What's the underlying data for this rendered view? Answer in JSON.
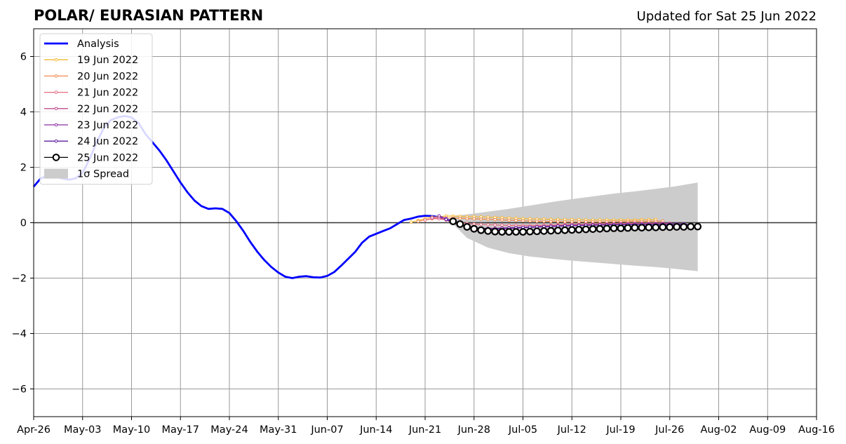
{
  "chart_data": {
    "type": "line",
    "title": "POLAR/ EURASIAN  PATTERN",
    "subtitle": "Updated for Sat 25 Jun 2022",
    "xlabel": "",
    "ylabel": "",
    "xlim": [
      "2022-04-26",
      "2022-08-16"
    ],
    "ylim": [
      -7,
      7
    ],
    "x_ticks": [
      "Apr-26",
      "May-03",
      "May-10",
      "May-17",
      "May-24",
      "May-31",
      "Jun-07",
      "Jun-14",
      "Jun-21",
      "Jun-28",
      "Jul-05",
      "Jul-12",
      "Jul-19",
      "Jul-26",
      "Aug-02",
      "Aug-09",
      "Aug-16"
    ],
    "y_ticks": [
      -6,
      -4,
      -2,
      0,
      2,
      4,
      6
    ],
    "y_tick_labels": [
      "−6",
      "−4",
      "−2",
      "0",
      "2",
      "4",
      "6"
    ],
    "grid": true,
    "legend_position": "upper-left",
    "analysis": {
      "name": "Analysis",
      "color": "#0000ff",
      "x": [
        "2022-04-26",
        "2022-04-27",
        "2022-04-28",
        "2022-04-29",
        "2022-04-30",
        "2022-05-01",
        "2022-05-02",
        "2022-05-03",
        "2022-05-04",
        "2022-05-05",
        "2022-05-06",
        "2022-05-07",
        "2022-05-08",
        "2022-05-09",
        "2022-05-10",
        "2022-05-11",
        "2022-05-12",
        "2022-05-13",
        "2022-05-14",
        "2022-05-15",
        "2022-05-16",
        "2022-05-17",
        "2022-05-18",
        "2022-05-19",
        "2022-05-20",
        "2022-05-21",
        "2022-05-22",
        "2022-05-23",
        "2022-05-24",
        "2022-05-25",
        "2022-05-26",
        "2022-05-27",
        "2022-05-28",
        "2022-05-29",
        "2022-05-30",
        "2022-05-31",
        "2022-06-01",
        "2022-06-02",
        "2022-06-03",
        "2022-06-04",
        "2022-06-05",
        "2022-06-06",
        "2022-06-07",
        "2022-06-08",
        "2022-06-09",
        "2022-06-10",
        "2022-06-11",
        "2022-06-12",
        "2022-06-13",
        "2022-06-14",
        "2022-06-15",
        "2022-06-16",
        "2022-06-17",
        "2022-06-18",
        "2022-06-19",
        "2022-06-20",
        "2022-06-21",
        "2022-06-22",
        "2022-06-23",
        "2022-06-24",
        "2022-06-25"
      ],
      "values": [
        1.3,
        1.6,
        1.7,
        1.7,
        1.6,
        1.55,
        1.6,
        1.8,
        2.3,
        2.9,
        3.4,
        3.7,
        3.8,
        3.85,
        3.8,
        3.6,
        3.2,
        2.9,
        2.6,
        2.25,
        1.85,
        1.45,
        1.1,
        0.8,
        0.6,
        0.5,
        0.52,
        0.5,
        0.35,
        0.05,
        -0.3,
        -0.7,
        -1.05,
        -1.35,
        -1.6,
        -1.8,
        -1.95,
        -2.0,
        -1.95,
        -1.93,
        -1.97,
        -1.98,
        -1.92,
        -1.78,
        -1.55,
        -1.3,
        -1.05,
        -0.72,
        -0.5,
        -0.4,
        -0.3,
        -0.2,
        -0.05,
        0.1,
        0.15,
        0.22,
        0.25,
        0.24,
        0.2,
        0.12,
        0.05
      ]
    },
    "forecasts": [
      {
        "name": "19 Jun 2022",
        "color": "#f7b733",
        "start": "2022-06-19",
        "values": [
          0.02,
          0.08,
          0.15,
          0.2,
          0.22,
          0.24,
          0.24,
          0.23,
          0.22,
          0.22,
          0.21,
          0.2,
          0.19,
          0.18,
          0.17,
          0.16,
          0.15,
          0.14,
          0.13,
          0.13,
          0.12,
          0.12,
          0.11,
          0.11,
          0.11,
          0.1,
          0.1,
          0.1,
          0.1,
          0.1,
          0.1,
          0.1,
          0.1,
          0.11,
          0.11,
          0.12
        ]
      },
      {
        "name": "20 Jun 2022",
        "color": "#f28a4b",
        "start": "2022-06-20",
        "values": [
          0.05,
          0.1,
          0.14,
          0.16,
          0.17,
          0.17,
          0.16,
          0.15,
          0.14,
          0.13,
          0.12,
          0.11,
          0.1,
          0.09,
          0.08,
          0.07,
          0.06,
          0.05,
          0.05,
          0.04,
          0.04,
          0.03,
          0.03,
          0.03,
          0.03,
          0.03,
          0.03,
          0.03,
          0.04,
          0.04,
          0.04,
          0.05,
          0.05,
          0.05,
          0.05,
          0.06
        ]
      },
      {
        "name": "21 Jun 2022",
        "color": "#e56a7f",
        "start": "2022-06-21",
        "values": [
          0.1,
          0.15,
          0.14,
          0.1,
          0.05,
          0.0,
          -0.03,
          -0.05,
          -0.06,
          -0.07,
          -0.08,
          -0.09,
          -0.1,
          -0.1,
          -0.1,
          -0.1,
          -0.1,
          -0.09,
          -0.09,
          -0.08,
          -0.07,
          -0.06,
          -0.06,
          -0.05,
          -0.05,
          -0.04,
          -0.04,
          -0.03,
          -0.03,
          -0.02,
          -0.02,
          -0.02,
          -0.02,
          -0.02,
          -0.02,
          -0.02
        ]
      },
      {
        "name": "22 Jun 2022",
        "color": "#c24c8f",
        "start": "2022-06-22",
        "values": [
          0.18,
          0.2,
          0.1,
          -0.02,
          -0.1,
          -0.15,
          -0.18,
          -0.2,
          -0.2,
          -0.2,
          -0.19,
          -0.18,
          -0.17,
          -0.16,
          -0.15,
          -0.14,
          -0.13,
          -0.12,
          -0.11,
          -0.1,
          -0.09,
          -0.08,
          -0.08,
          -0.07,
          -0.07,
          -0.06,
          -0.06,
          -0.05,
          -0.05,
          -0.05,
          -0.05,
          -0.05,
          -0.04,
          -0.04,
          -0.04,
          -0.04
        ]
      },
      {
        "name": "23 Jun 2022",
        "color": "#8a2ea0",
        "start": "2022-06-23",
        "values": [
          0.25,
          0.15,
          0.0,
          -0.1,
          -0.16,
          -0.2,
          -0.22,
          -0.23,
          -0.23,
          -0.22,
          -0.21,
          -0.2,
          -0.18,
          -0.17,
          -0.16,
          -0.15,
          -0.14,
          -0.13,
          -0.12,
          -0.11,
          -0.1,
          -0.09,
          -0.08,
          -0.08,
          -0.07,
          -0.07,
          -0.06,
          -0.06,
          -0.05,
          -0.05,
          -0.05,
          -0.05,
          -0.04,
          -0.04,
          -0.04,
          -0.04
        ]
      },
      {
        "name": "24 Jun 2022",
        "color": "#5a1ea0",
        "start": "2022-06-24",
        "values": [
          0.12,
          0.02,
          -0.08,
          -0.14,
          -0.18,
          -0.2,
          -0.21,
          -0.21,
          -0.2,
          -0.19,
          -0.18,
          -0.17,
          -0.16,
          -0.15,
          -0.14,
          -0.13,
          -0.12,
          -0.11,
          -0.1,
          -0.1,
          -0.09,
          -0.09,
          -0.08,
          -0.08,
          -0.07,
          -0.07,
          -0.07,
          -0.06,
          -0.06,
          -0.06,
          -0.06,
          -0.06,
          -0.06,
          -0.06,
          -0.06,
          -0.06
        ]
      },
      {
        "name": "25 Jun 2022",
        "color": "#000000",
        "start": "2022-06-25",
        "values": [
          0.05,
          -0.05,
          -0.15,
          -0.22,
          -0.27,
          -0.3,
          -0.32,
          -0.33,
          -0.33,
          -0.33,
          -0.33,
          -0.32,
          -0.31,
          -0.3,
          -0.29,
          -0.28,
          -0.27,
          -0.26,
          -0.25,
          -0.24,
          -0.23,
          -0.22,
          -0.21,
          -0.2,
          -0.2,
          -0.19,
          -0.18,
          -0.18,
          -0.17,
          -0.17,
          -0.16,
          -0.16,
          -0.15,
          -0.15,
          -0.14,
          -0.14
        ]
      }
    ],
    "spread": {
      "name": "1σ Spread",
      "color": "#cccccc",
      "x": [
        "2022-06-25",
        "2022-06-27",
        "2022-06-30",
        "2022-07-03",
        "2022-07-06",
        "2022-07-09",
        "2022-07-12",
        "2022-07-15",
        "2022-07-18",
        "2022-07-21",
        "2022-07-24",
        "2022-07-27",
        "2022-07-30"
      ],
      "upper": [
        0.25,
        0.3,
        0.4,
        0.5,
        0.62,
        0.74,
        0.85,
        0.95,
        1.05,
        1.13,
        1.22,
        1.32,
        1.45
      ],
      "lower": [
        -0.05,
        -0.55,
        -0.9,
        -1.1,
        -1.22,
        -1.3,
        -1.37,
        -1.43,
        -1.49,
        -1.55,
        -1.6,
        -1.67,
        -1.75
      ]
    }
  }
}
